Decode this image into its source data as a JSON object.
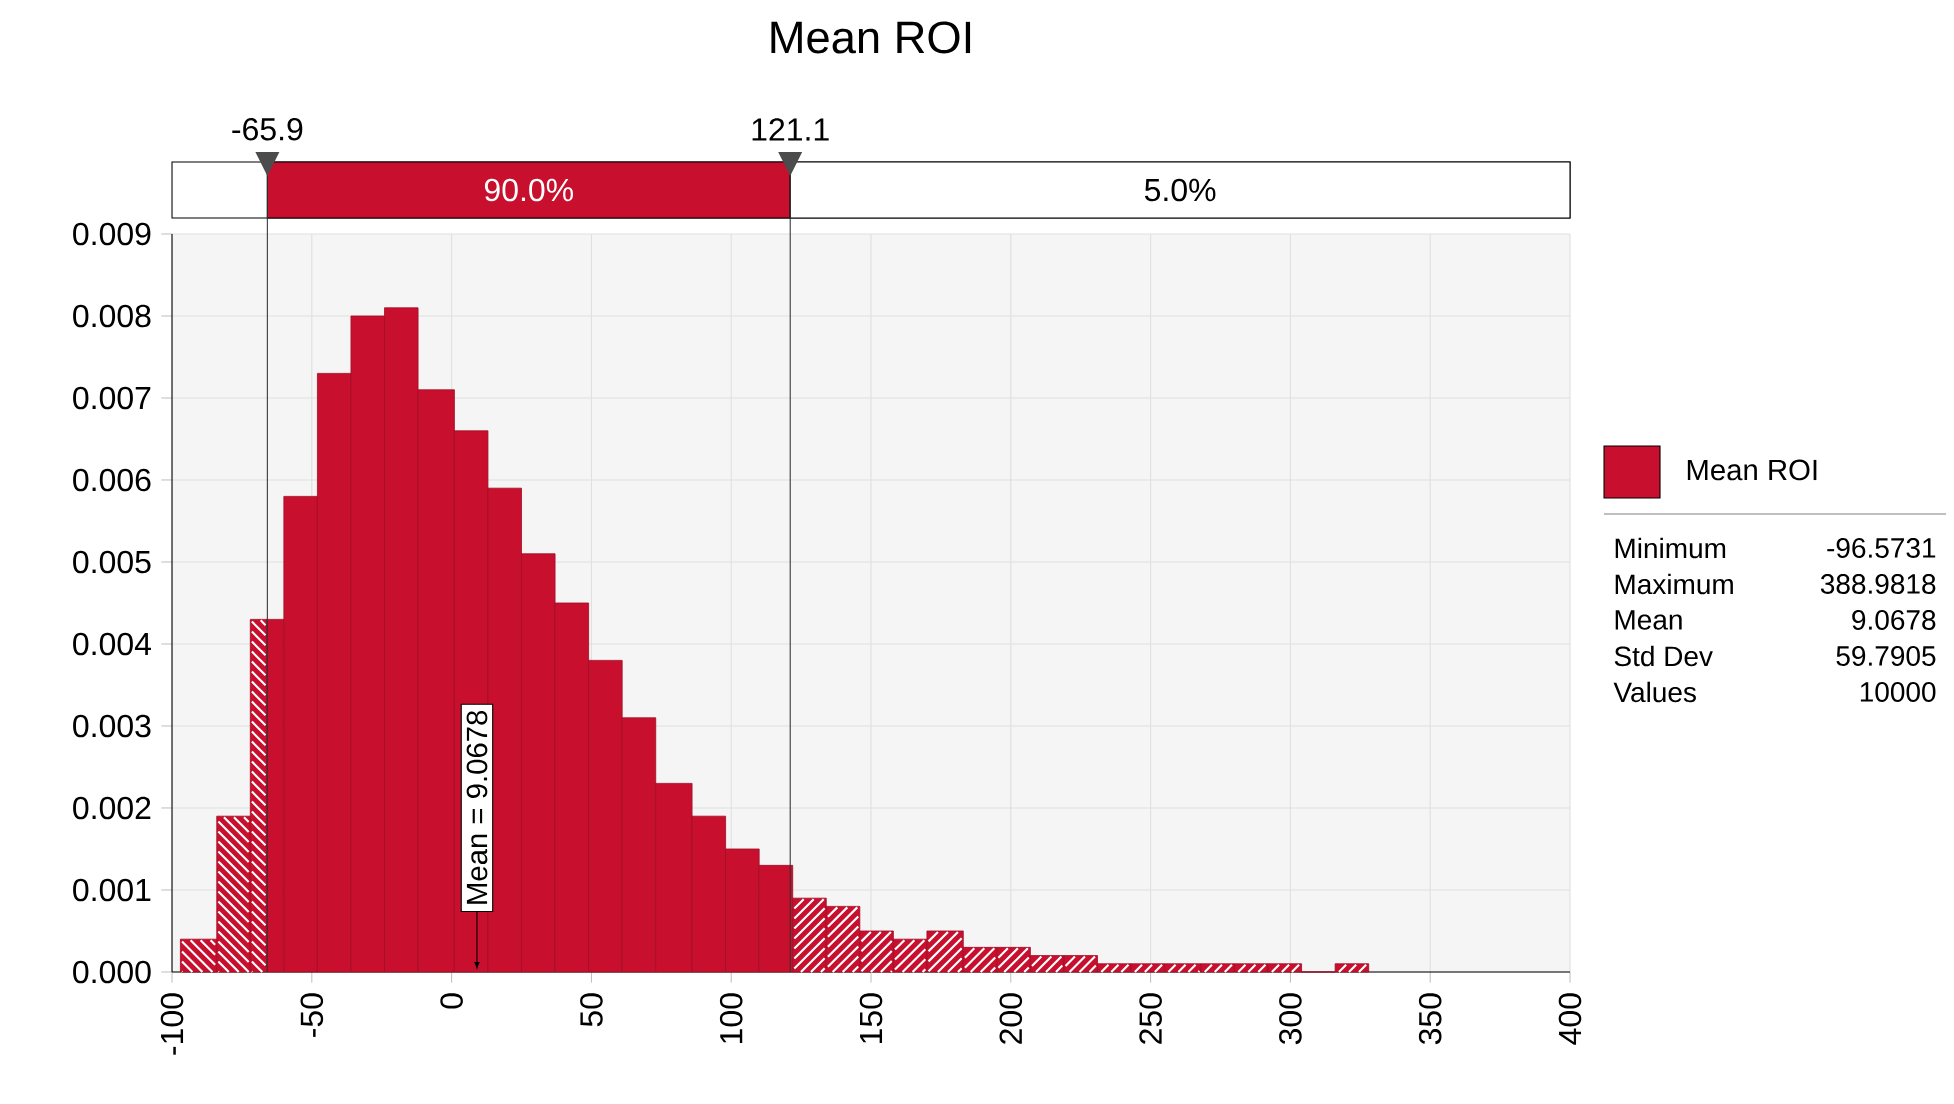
{
  "chart_data": {
    "type": "histogram",
    "title": "Mean ROI",
    "bins": [
      -97,
      -84,
      -72,
      -66,
      -60,
      -48,
      -36,
      -24,
      -12,
      1,
      13,
      25,
      37,
      49,
      61,
      73,
      86,
      98,
      110,
      122,
      134,
      146,
      158,
      170,
      183,
      195,
      207,
      219,
      231,
      243,
      255,
      268,
      280,
      292,
      304,
      316,
      328
    ],
    "series": [
      {
        "name": "Mean ROI",
        "color": "#c8102e",
        "values": [
          0.0004,
          0.0019,
          0.0043,
          0.0043,
          0.0058,
          0.0073,
          0.008,
          0.0081,
          0.0071,
          0.0066,
          0.0059,
          0.0051,
          0.0045,
          0.0038,
          0.0031,
          0.0023,
          0.0019,
          0.0015,
          0.0013,
          0.0009,
          0.0008,
          0.0005,
          0.0004,
          0.0005,
          0.0003,
          0.0003,
          0.0002,
          0.0002,
          0.0001,
          0.0001,
          0.0001,
          0.0001,
          0.0001,
          0.0001,
          0,
          0.0001
        ]
      }
    ],
    "xlim": [
      -100,
      400
    ],
    "xticks": [
      -100,
      -50,
      0,
      50,
      100,
      150,
      200,
      250,
      300,
      350,
      400
    ],
    "ylim": [
      0,
      0.009
    ],
    "yticks": [
      {
        "value": 0,
        "label": "0.000"
      },
      {
        "value": 0.001,
        "label": "0.001"
      },
      {
        "value": 0.002,
        "label": "0.002"
      },
      {
        "value": 0.003,
        "label": "0.003"
      },
      {
        "value": 0.004,
        "label": "0.004"
      },
      {
        "value": 0.005,
        "label": "0.005"
      },
      {
        "value": 0.006,
        "label": "0.006"
      },
      {
        "value": 0.007,
        "label": "0.007"
      },
      {
        "value": 0.008,
        "label": "0.008"
      },
      {
        "value": 0.009,
        "label": "0.009"
      }
    ],
    "grid": true,
    "legend": "right",
    "ref_lines": [
      {
        "axis": "x",
        "value": -65.9,
        "label": "-65.9"
      },
      {
        "axis": "x",
        "value": 121.1,
        "label": "121.1"
      }
    ],
    "annotations": [
      "90.0%",
      "5.0%",
      {
        "text": "Mean = 9.0678",
        "x": 9.0678,
        "y": 0
      },
      "Minimum",
      "-96.5731",
      "Maximum",
      "388.9818",
      "Mean",
      "9.0678",
      "Std Dev",
      "59.7905",
      "Values",
      "10000"
    ]
  }
}
